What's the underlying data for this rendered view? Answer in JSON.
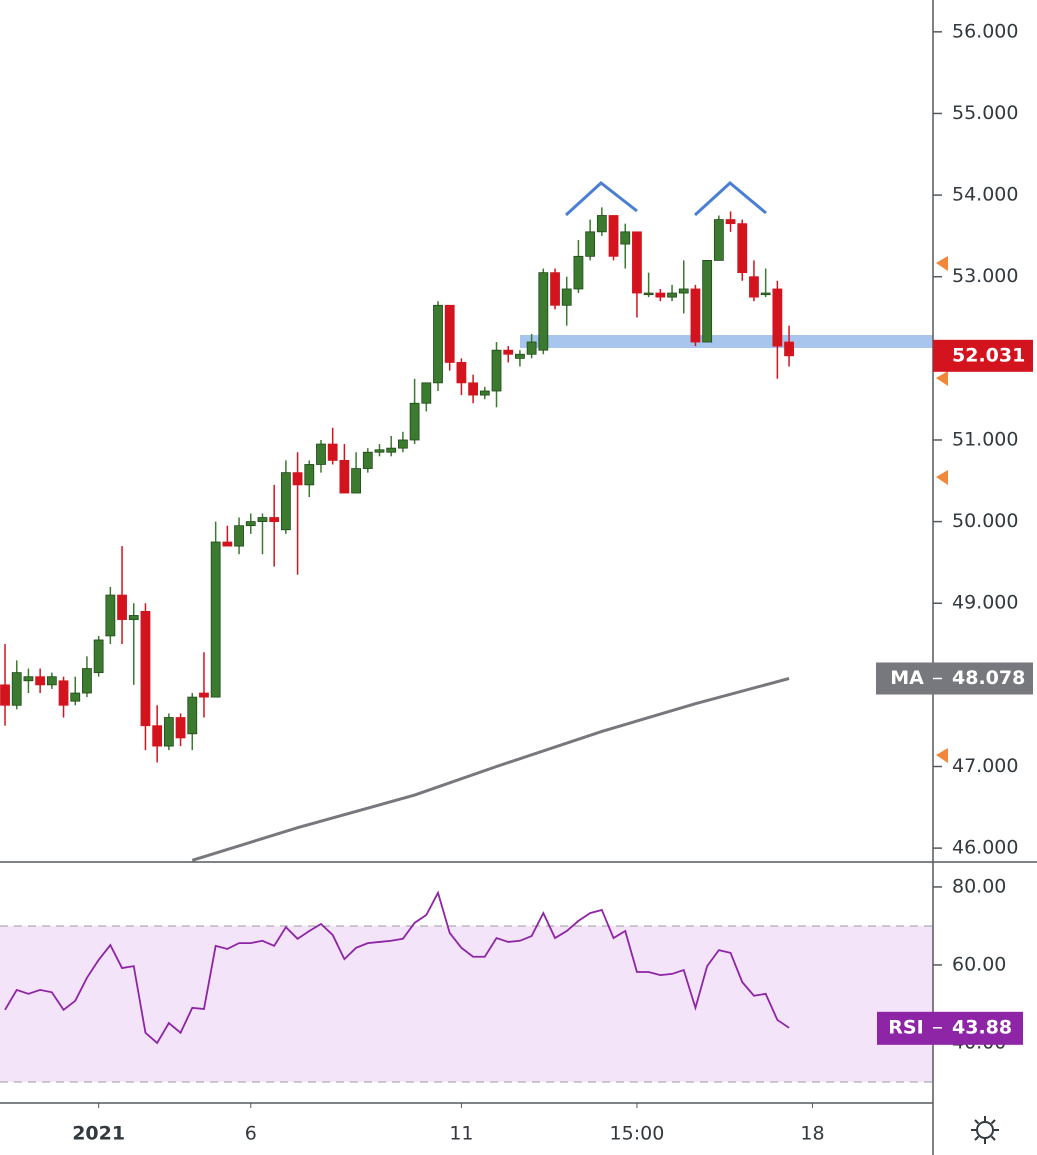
{
  "chart_data": [
    {
      "type": "candlestick",
      "up_color": "#3b7a2f",
      "down_color": "#d3141f",
      "open": [
        48.0,
        47.75,
        48.05,
        48.1,
        48.0,
        48.05,
        47.8,
        47.9,
        48.15,
        48.6,
        49.1,
        48.8,
        48.9,
        47.5,
        47.25,
        47.6,
        47.4,
        47.9,
        47.85,
        49.75,
        49.7,
        49.95,
        50.0,
        50.05,
        49.9,
        50.6,
        50.45,
        50.7,
        50.95,
        50.75,
        50.35,
        50.65,
        50.85,
        50.85,
        50.9,
        51.0,
        51.45,
        51.7,
        52.65,
        51.95,
        51.7,
        51.55,
        51.6,
        52.1,
        52.0,
        52.05,
        52.1,
        53.05,
        52.65,
        52.85,
        53.25,
        53.55,
        53.75,
        53.4,
        53.55,
        52.78,
        52.8,
        52.75,
        52.8,
        52.85,
        52.2,
        53.2,
        53.7,
        53.65,
        53.0,
        52.78,
        52.85,
        52.2
      ],
      "high": [
        48.5,
        48.3,
        48.2,
        48.2,
        48.15,
        48.1,
        48.1,
        48.35,
        48.6,
        49.2,
        49.7,
        49.0,
        49.0,
        47.75,
        47.65,
        47.65,
        47.9,
        48.4,
        50.0,
        49.95,
        50.05,
        50.1,
        50.1,
        50.45,
        50.75,
        50.85,
        50.75,
        51.0,
        51.15,
        50.95,
        50.85,
        50.9,
        50.95,
        51.05,
        51.1,
        51.75,
        51.7,
        52.7,
        52.65,
        52.0,
        51.8,
        51.65,
        52.2,
        52.15,
        52.1,
        52.3,
        53.1,
        53.1,
        53.0,
        53.45,
        53.7,
        53.85,
        53.75,
        53.65,
        53.55,
        53.05,
        52.85,
        52.9,
        53.2,
        52.9,
        53.2,
        53.75,
        53.8,
        53.7,
        53.2,
        53.1,
        52.95,
        52.4
      ],
      "low": [
        47.5,
        47.7,
        47.9,
        47.9,
        47.95,
        47.6,
        47.75,
        47.85,
        48.1,
        48.5,
        48.5,
        48.0,
        47.2,
        47.05,
        47.2,
        47.25,
        47.2,
        47.6,
        47.85,
        49.7,
        49.6,
        49.85,
        49.6,
        49.45,
        49.85,
        49.35,
        50.3,
        50.6,
        50.7,
        50.35,
        50.35,
        50.6,
        50.8,
        50.8,
        50.85,
        50.95,
        51.35,
        51.6,
        51.85,
        51.55,
        51.45,
        51.5,
        51.4,
        51.95,
        51.9,
        52.0,
        52.05,
        52.6,
        52.4,
        52.8,
        53.2,
        53.5,
        53.2,
        53.1,
        52.5,
        52.75,
        52.7,
        52.7,
        52.55,
        52.15,
        52.2,
        53.2,
        53.55,
        52.95,
        52.7,
        52.75,
        51.75,
        51.9
      ],
      "close": [
        47.75,
        48.15,
        48.1,
        48.0,
        48.1,
        47.75,
        47.9,
        48.2,
        48.55,
        49.1,
        48.8,
        48.85,
        47.5,
        47.25,
        47.6,
        47.35,
        47.85,
        47.85,
        49.75,
        49.7,
        49.95,
        50.0,
        50.05,
        50.0,
        50.6,
        50.45,
        50.7,
        50.95,
        50.75,
        50.35,
        50.65,
        50.85,
        50.88,
        50.9,
        51.0,
        51.45,
        51.7,
        52.65,
        51.95,
        51.7,
        51.55,
        51.6,
        52.1,
        52.05,
        52.05,
        52.2,
        53.05,
        52.65,
        52.85,
        53.25,
        53.55,
        53.75,
        53.25,
        53.55,
        52.8,
        52.8,
        52.75,
        52.8,
        52.85,
        52.2,
        53.2,
        53.7,
        53.65,
        53.05,
        52.75,
        52.8,
        52.15,
        52.031
      ],
      "ma": {
        "name": "MA",
        "color": "#77777e",
        "x": [
          16,
          25,
          35,
          42,
          51,
          59,
          67
        ],
        "values": [
          45.85,
          46.25,
          46.65,
          47.0,
          47.43,
          47.77,
          48.078
        ]
      },
      "xlim": [
        -0.43,
        79.3
      ],
      "xticks": [
        {
          "value": 8,
          "label": "2021"
        },
        {
          "value": 21,
          "label": "6"
        },
        {
          "value": 39,
          "label": "11"
        },
        {
          "value": 54,
          "label": "15:00"
        },
        {
          "value": 69,
          "label": "18"
        }
      ],
      "ylim": [
        45.83,
        56.39
      ],
      "yticks": [
        {
          "value": 46,
          "label": "46.000"
        },
        {
          "value": 47,
          "label": "47.000"
        },
        {
          "value": 49,
          "label": "49.000"
        },
        {
          "value": 50,
          "label": "50.000"
        },
        {
          "value": 51,
          "label": "51.000"
        },
        {
          "value": 53,
          "label": "53.000"
        },
        {
          "value": 54,
          "label": "54.000"
        },
        {
          "value": 55,
          "label": "55.000"
        },
        {
          "value": 56,
          "label": "56.000"
        }
      ]
    },
    {
      "type": "line",
      "name": "RSI",
      "color": "#8e24a6",
      "values": [
        48.5,
        53.6,
        52.6,
        53.6,
        53.0,
        48.5,
        50.8,
        56.7,
        61.3,
        65.1,
        59.2,
        59.7,
        42.6,
        40.0,
        45.1,
        42.6,
        49.0,
        48.7,
        64.9,
        64.1,
        65.6,
        65.6,
        66.2,
        64.9,
        69.7,
        66.7,
        68.7,
        70.5,
        67.7,
        61.5,
        64.4,
        65.6,
        65.9,
        66.2,
        66.7,
        70.8,
        72.8,
        78.5,
        68.2,
        64.4,
        62.1,
        62.1,
        66.9,
        65.9,
        66.2,
        67.4,
        73.3,
        66.9,
        68.7,
        71.3,
        73.3,
        74.1,
        66.9,
        68.7,
        58.2,
        58.2,
        57.4,
        57.7,
        58.7,
        49.0,
        59.7,
        63.8,
        63.1,
        55.6,
        52.1,
        52.6,
        45.9,
        43.88
      ],
      "band": [
        30,
        70
      ],
      "band_color": "#f3e4f9",
      "ylim": [
        24.6,
        86.4
      ],
      "yticks": [
        {
          "value": 40,
          "label": "40.00"
        },
        {
          "value": 60,
          "label": "60.00"
        },
        {
          "value": 80,
          "label": "80.00"
        }
      ]
    }
  ]
}
